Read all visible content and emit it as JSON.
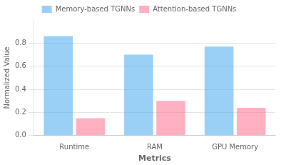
{
  "chart_data": {
    "type": "bar",
    "categories": [
      "Runtime",
      "RAM",
      "GPU Memory"
    ],
    "series": [
      {
        "name": "Memory-based TGNNs",
        "values": [
          0.86,
          0.7,
          0.77
        ]
      },
      {
        "name": "Attention-based TGNNs",
        "values": [
          0.15,
          0.3,
          0.24
        ]
      }
    ],
    "xlabel": "Metrics",
    "ylabel": "Normalized Value",
    "ylim": [
      0.0,
      1.0
    ],
    "yticks": [
      {
        "value": 0,
        "label": "0.0"
      },
      0.2,
      0.4,
      0.6,
      0.8
    ],
    "grid": true,
    "legend": "top"
  }
}
